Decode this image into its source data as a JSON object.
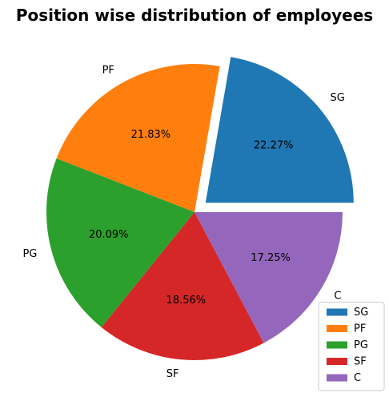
{
  "chart_data": {
    "type": "pie",
    "title": "Position wise distribution of employees",
    "categories": [
      "SG",
      "PF",
      "PG",
      "SF",
      "C"
    ],
    "values": [
      22.27,
      21.83,
      20.09,
      18.56,
      17.25
    ],
    "value_labels": [
      "22.27%",
      "21.83%",
      "20.09%",
      "18.56%",
      "17.25%"
    ],
    "colors": [
      "#1f77b4",
      "#ff7f0e",
      "#2ca02c",
      "#d62728",
      "#9467bd"
    ],
    "exploded": [
      "SG"
    ],
    "start_angle_deg": 0,
    "direction": "counterclockwise",
    "legend": {
      "placement": "lower-right",
      "entries": [
        "SG",
        "PF",
        "PG",
        "SF",
        "C"
      ]
    }
  }
}
